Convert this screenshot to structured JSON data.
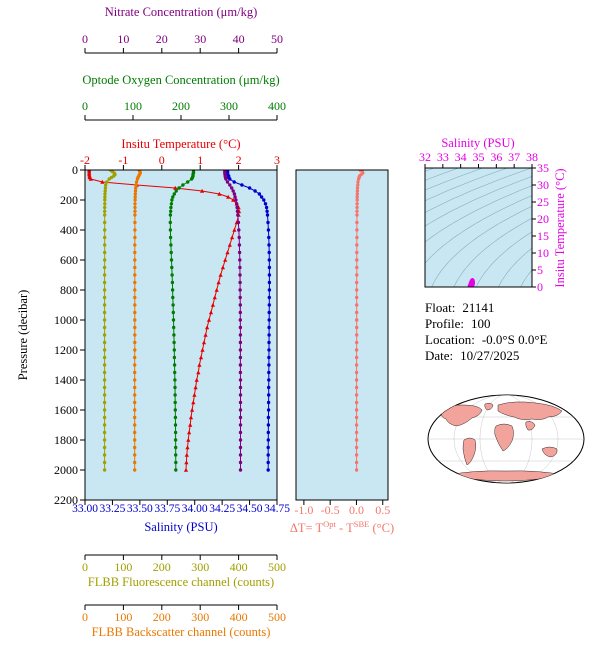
{
  "plot_bg": "#c9e7f3",
  "axes": {
    "pressure": {
      "label": "Pressure (decibar)",
      "range": [
        0,
        2200
      ],
      "ticks": [
        0,
        200,
        400,
        600,
        800,
        1000,
        1200,
        1400,
        1600,
        1800,
        2000,
        2200
      ],
      "color": "#000000"
    },
    "nitrate": {
      "title": "Nitrate Concentration (μm/kg)",
      "range": [
        0,
        50
      ],
      "ticks": [
        0,
        10,
        20,
        30,
        40,
        50
      ],
      "color": "#800080"
    },
    "oxygen": {
      "title": "Optode Oxygen Concentration (μm/kg)",
      "range": [
        0,
        400
      ],
      "ticks": [
        0,
        100,
        200,
        300,
        400
      ],
      "color": "#007c00"
    },
    "temperature": {
      "title": "Insitu Temperature (°C)",
      "range": [
        -2,
        3
      ],
      "ticks": [
        -2,
        -1,
        0,
        1,
        2,
        3
      ],
      "color": "#e60000"
    },
    "salinity": {
      "title": "Salinity (PSU)",
      "range": [
        33.0,
        34.75
      ],
      "ticks": [
        33.0,
        33.25,
        33.5,
        33.75,
        34.0,
        34.25,
        34.5,
        34.75
      ],
      "tick_labels": [
        "33.00",
        "33.25",
        "33.50",
        "33.75",
        "34.00",
        "34.25",
        "34.50",
        "34.75"
      ],
      "color": "#0000cc"
    },
    "fluorescence": {
      "title": "FLBB Fluorescence channel (counts)",
      "range": [
        0,
        500
      ],
      "ticks": [
        0,
        100,
        200,
        300,
        400,
        500
      ],
      "color": "#a0a000"
    },
    "backscatter": {
      "title": "FLBB Backscatter channel (counts)",
      "range": [
        0,
        500
      ],
      "ticks": [
        0,
        100,
        200,
        300,
        400,
        500
      ],
      "color": "#e87800"
    }
  },
  "delta": {
    "title": {
      "p1": "ΔT= T",
      "sup1": "Opt",
      "p2": " - T",
      "sup2": "SBE",
      "p3": " (°C)"
    },
    "color": "#f4756b",
    "range": [
      -1.15,
      0.6
    ],
    "ticks": [
      -1.0,
      -0.5,
      0.0,
      0.5
    ],
    "tick_labels": [
      "-1.0",
      "-0.5",
      "0.0",
      "0.5"
    ]
  },
  "ts": {
    "title": "Salinity (PSU)",
    "x_range": [
      32,
      38
    ],
    "x_ticks": [
      32,
      33,
      34,
      35,
      36,
      37,
      38
    ],
    "y_label": "Insitu Temperature (°C)",
    "y_range": [
      0,
      35
    ],
    "y_ticks": [
      0,
      5,
      10,
      15,
      20,
      25,
      30,
      35
    ],
    "color": "#e600e6",
    "contour_color": "#7fa9ba",
    "sigma_levels": [
      18,
      19,
      20,
      21,
      22,
      23,
      24,
      25,
      26,
      27,
      28,
      29,
      30
    ]
  },
  "info": {
    "rows": [
      {
        "label": "Float:",
        "value": "21141"
      },
      {
        "label": "Profile:",
        "value": "100"
      },
      {
        "label": "Location:",
        "value": "-0.0°S  0.0°E"
      },
      {
        "label": "Date:",
        "value": "10/27/2025"
      }
    ]
  },
  "map": {
    "land_color": "#f2a49c",
    "ocean_color": "#ffffff",
    "outline_color": "#000000"
  },
  "chart_data": [
    {
      "id": "profiles",
      "type": "line",
      "orientation": "vertical-profile",
      "ylabel": "Pressure (decibar)",
      "ylim": [
        0,
        2200
      ],
      "y_inverted": true,
      "pressure": [
        0,
        10,
        20,
        30,
        40,
        50,
        60,
        80,
        100,
        120,
        140,
        160,
        180,
        200,
        225,
        250,
        275,
        300,
        350,
        400,
        450,
        500,
        550,
        600,
        650,
        700,
        750,
        800,
        850,
        900,
        950,
        1000,
        1050,
        1100,
        1150,
        1200,
        1250,
        1300,
        1350,
        1400,
        1450,
        1500,
        1550,
        1600,
        1650,
        1700,
        1750,
        1800,
        1850,
        1900,
        1950,
        2000
      ],
      "series": [
        {
          "name": "Insitu Temperature (°C)",
          "axis": "temperature",
          "color": "#e60000",
          "marker": "triangle",
          "values": [
            -1.89,
            -1.89,
            -1.89,
            -1.89,
            -1.88,
            -1.88,
            -1.85,
            -1.55,
            -0.65,
            0.35,
            1.05,
            1.5,
            1.73,
            1.86,
            1.95,
            2.0,
            2.01,
            2.0,
            1.95,
            1.89,
            1.83,
            1.77,
            1.71,
            1.65,
            1.59,
            1.53,
            1.48,
            1.43,
            1.38,
            1.33,
            1.28,
            1.23,
            1.18,
            1.14,
            1.1,
            1.06,
            1.02,
            0.98,
            0.95,
            0.91,
            0.88,
            0.85,
            0.82,
            0.79,
            0.76,
            0.74,
            0.71,
            0.69,
            0.67,
            0.65,
            0.64,
            0.63
          ]
        },
        {
          "name": "Salinity (PSU)",
          "axis": "salinity",
          "color": "#0000cc",
          "marker": "circle",
          "values": [
            34.3,
            34.3,
            34.3,
            34.3,
            34.31,
            34.31,
            34.32,
            34.36,
            34.43,
            34.5,
            34.55,
            34.59,
            34.61,
            34.63,
            34.645,
            34.655,
            34.66,
            34.663,
            34.668,
            34.672,
            34.675,
            34.677,
            34.679,
            34.68,
            34.681,
            34.681,
            34.681,
            34.681,
            34.68,
            34.68,
            34.679,
            34.679,
            34.678,
            34.678,
            34.677,
            34.677,
            34.676,
            34.676,
            34.675,
            34.675,
            34.674,
            34.674,
            34.673,
            34.673,
            34.672,
            34.672,
            34.671,
            34.671,
            34.67,
            34.67,
            34.67,
            34.67
          ]
        },
        {
          "name": "Optode Oxygen Concentration (μm/kg)",
          "axis": "oxygen",
          "color": "#007c00",
          "marker": "circle",
          "values": [
            226,
            226,
            226,
            225,
            225,
            224,
            222,
            214,
            204,
            196,
            190,
            186,
            183,
            181,
            180,
            179,
            178.5,
            178,
            177.8,
            178,
            178.4,
            179,
            179.6,
            180.2,
            180.8,
            181.4,
            182,
            182.5,
            183,
            183.5,
            184,
            184.4,
            184.8,
            185.2,
            185.6,
            186,
            186.3,
            186.6,
            186.9,
            187.2,
            187.5,
            187.7,
            187.9,
            188.1,
            188.3,
            188.5,
            188.7,
            188.8,
            188.9,
            189,
            189.1,
            189.2
          ]
        },
        {
          "name": "Nitrate Concentration (μm/kg)",
          "axis": "nitrate",
          "color": "#800080",
          "marker": "circle",
          "values": [
            36.4,
            36.4,
            36.4,
            36.45,
            36.5,
            36.6,
            36.7,
            37.1,
            37.7,
            38.2,
            38.6,
            38.9,
            39.1,
            39.3,
            39.5,
            39.6,
            39.7,
            39.8,
            39.95,
            40.05,
            40.15,
            40.2,
            40.25,
            40.3,
            40.33,
            40.36,
            40.38,
            40.4,
            40.42,
            40.43,
            40.44,
            40.45,
            40.46,
            40.46,
            40.47,
            40.47,
            40.48,
            40.48,
            40.48,
            40.49,
            40.49,
            40.49,
            40.5,
            40.5,
            40.5,
            40.5,
            40.5,
            40.5,
            40.5,
            40.5,
            40.5,
            40.5
          ]
        },
        {
          "name": "FLBB Fluorescence channel (counts)",
          "axis": "fluorescence",
          "color": "#a0a000",
          "marker": "circle",
          "values": [
            66,
            71,
            76,
            78,
            75,
            69,
            63,
            57,
            54,
            53,
            52.5,
            52,
            51.8,
            51.6,
            51.5,
            51.4,
            51.4,
            51.3,
            51.3,
            51.2,
            51.2,
            51.2,
            51.2,
            51.2,
            51.1,
            51.1,
            51.1,
            51.1,
            51.1,
            51.1,
            51.1,
            51.1,
            51.1,
            51,
            51,
            51,
            51,
            51,
            51,
            51,
            51,
            51,
            51,
            51,
            51,
            51,
            51,
            51,
            51,
            51,
            51,
            51
          ]
        },
        {
          "name": "FLBB Backscatter channel (counts)",
          "axis": "backscatter",
          "color": "#e87800",
          "marker": "circle",
          "values": [
            141,
            143,
            144,
            142,
            140,
            138,
            136.5,
            134.5,
            133,
            132,
            131.5,
            131,
            130.7,
            130.5,
            130.3,
            130.2,
            130.1,
            130,
            130,
            129.9,
            129.9,
            129.8,
            129.8,
            129.8,
            129.8,
            129.7,
            129.7,
            129.7,
            129.7,
            129.7,
            129.6,
            129.6,
            129.6,
            129.6,
            129.6,
            129.6,
            129.5,
            129.5,
            129.5,
            129.5,
            129.5,
            129.5,
            129.5,
            129.5,
            129.5,
            129.5,
            129.5,
            129.5,
            129.5,
            129.5,
            129.5,
            129.5
          ]
        }
      ]
    },
    {
      "id": "delta_t",
      "type": "line",
      "xlabel": "ΔT= T^Opt - T^SBE (°C)",
      "xlim": [
        -1.15,
        0.6
      ],
      "x_ticks": [
        -1.0,
        -0.5,
        0.0,
        0.5
      ],
      "color": "#f4756b",
      "pressure_ref": "profiles",
      "values": [
        0.07,
        0.11,
        0.12,
        0.09,
        0.06,
        0.05,
        0.04,
        0.03,
        0.025,
        0.02,
        0.018,
        0.016,
        0.015,
        0.014,
        0.013,
        0.012,
        0.011,
        0.01,
        0.009,
        0.008,
        0.008,
        0.007,
        0.007,
        0.006,
        0.006,
        0.006,
        0.005,
        0.005,
        0.005,
        0.005,
        0.004,
        0.004,
        0.004,
        0.004,
        0.004,
        0.003,
        0.003,
        0.003,
        0.003,
        0.003,
        0.003,
        0.003,
        0.002,
        0.002,
        0.002,
        0.002,
        0.002,
        0.002,
        0.002,
        0.002,
        0.002,
        0.002
      ]
    },
    {
      "id": "ts_diagram",
      "type": "scatter",
      "title": "Salinity (PSU)",
      "xlim": [
        32,
        38
      ],
      "x_ticks": [
        32,
        33,
        34,
        35,
        36,
        37,
        38
      ],
      "ylabel": "Insitu Temperature (°C)",
      "ylim": [
        0,
        35
      ],
      "y_ticks": [
        0,
        5,
        10,
        15,
        20,
        25,
        30,
        35
      ],
      "points": "(salinity, temperature) pairs taken from the profiles chart series"
    }
  ]
}
